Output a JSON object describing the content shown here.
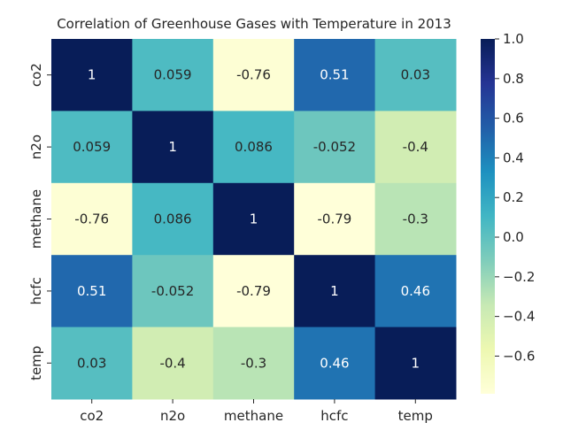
{
  "chart_data": {
    "type": "heatmap",
    "title": "Correlation of Greenhouse Gases with Temperature in 2013",
    "x_labels": [
      "co2",
      "n2o",
      "methane",
      "hcfc",
      "temp"
    ],
    "y_labels": [
      "co2",
      "n2o",
      "methane",
      "hcfc",
      "temp"
    ],
    "values": [
      [
        1,
        0.059,
        -0.76,
        0.51,
        0.03
      ],
      [
        0.059,
        1,
        0.086,
        -0.052,
        -0.4
      ],
      [
        -0.76,
        0.086,
        1,
        -0.79,
        -0.3
      ],
      [
        0.51,
        -0.052,
        -0.79,
        1,
        0.46
      ],
      [
        0.03,
        -0.4,
        -0.3,
        0.46,
        1
      ]
    ],
    "value_labels": [
      [
        "1",
        "0.059",
        "-0.76",
        "0.51",
        "0.03"
      ],
      [
        "0.059",
        "1",
        "0.086",
        "-0.052",
        "-0.4"
      ],
      [
        "-0.76",
        "0.086",
        "1",
        "-0.79",
        "-0.3"
      ],
      [
        "0.51",
        "-0.052",
        "-0.79",
        "1",
        "0.46"
      ],
      [
        "0.03",
        "-0.4",
        "-0.3",
        "0.46",
        "1"
      ]
    ],
    "colorbar": {
      "min": -0.79,
      "max": 1.0,
      "ticks": [
        1.0,
        0.8,
        0.6,
        0.4,
        0.2,
        0.0,
        -0.2,
        -0.4,
        -0.6
      ],
      "tick_labels": [
        "1.0",
        "0.8",
        "0.6",
        "0.4",
        "0.2",
        "0.0",
        "−0.2",
        "−0.4",
        "−0.6"
      ],
      "colormap": "YlGnBu",
      "colormap_stops": [
        "#ffffd9",
        "#edf8b1",
        "#c7e9b4",
        "#7fcdbb",
        "#41b6c4",
        "#1d91c0",
        "#225ea8",
        "#253494",
        "#081d58"
      ]
    },
    "grid": false,
    "legend": "colorbar-right"
  }
}
